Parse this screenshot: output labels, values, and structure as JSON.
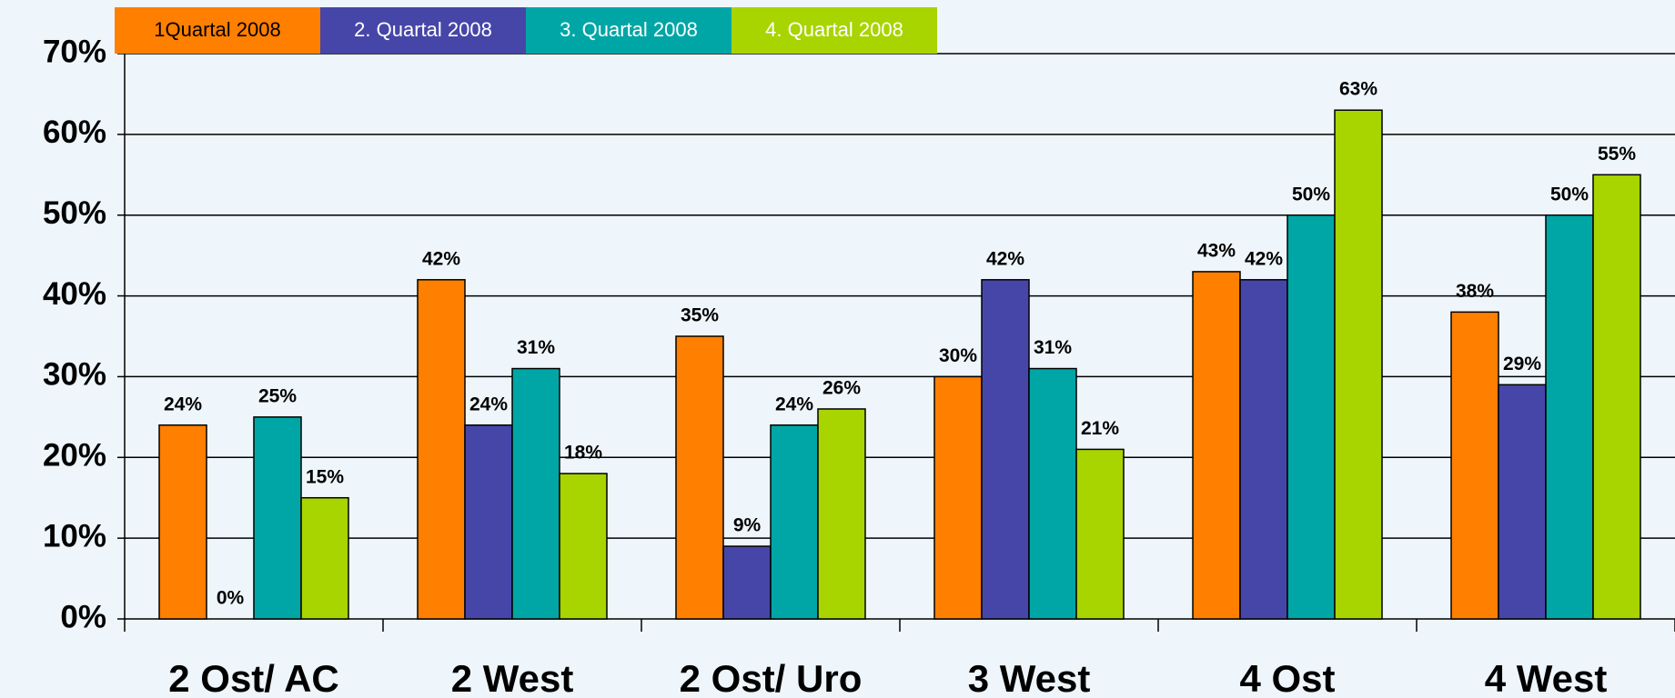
{
  "chart_data": {
    "type": "bar",
    "categories": [
      "2 Ost/ AC",
      "2 West",
      "2 Ost/ Uro",
      "3 West",
      "4 Ost",
      "4 West"
    ],
    "series": [
      {
        "name": "1Quartal 2008",
        "color": "#ff7f00",
        "values": [
          24,
          42,
          35,
          30,
          43,
          38
        ],
        "value_labels": [
          "24%",
          "42%",
          "35%",
          "30%",
          "43%",
          "38%"
        ]
      },
      {
        "name": "2. Quartal 2008",
        "color": "#4646a8",
        "values": [
          0,
          24,
          9,
          42,
          42,
          29
        ],
        "value_labels": [
          "0%",
          "24%",
          "9%",
          "42%",
          "42%",
          "29%"
        ]
      },
      {
        "name": "3. Quartal 2008",
        "color": "#00a6a6",
        "values": [
          25,
          31,
          24,
          31,
          50,
          50
        ],
        "value_labels": [
          "25%",
          "31%",
          "24%",
          "31%",
          "50%",
          "50%"
        ]
      },
      {
        "name": "4. Quartal 2008",
        "color": "#a8d400",
        "values": [
          15,
          18,
          26,
          21,
          63,
          55
        ],
        "value_labels": [
          "15%",
          "18%",
          "26%",
          "21%",
          "63%",
          "55%"
        ]
      }
    ],
    "ylim": [
      0,
      70
    ],
    "yticks": [
      {
        "value": 0,
        "label": "0%"
      },
      {
        "value": 10,
        "label": "10%"
      },
      {
        "value": 20,
        "label": "20%"
      },
      {
        "value": 30,
        "label": "30%"
      },
      {
        "value": 40,
        "label": "40%"
      },
      {
        "value": 50,
        "label": "50%"
      },
      {
        "value": 60,
        "label": "60%"
      },
      {
        "value": 70,
        "label": "70%"
      }
    ],
    "grid": true
  }
}
